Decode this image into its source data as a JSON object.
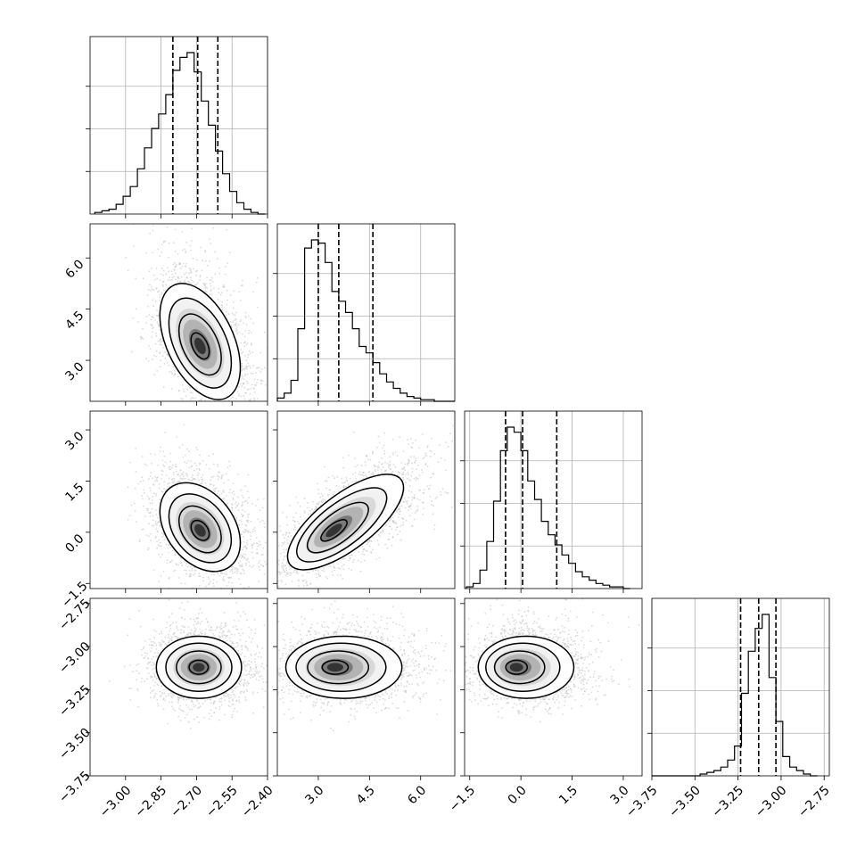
{
  "chart_data": {
    "type": "corner",
    "parameters": [
      {
        "range": [
          -3.15,
          -2.4
        ],
        "ticks": [
          -3.0,
          -2.85,
          -2.7,
          -2.55,
          -2.4
        ],
        "tick_labels": [
          "−3.00",
          "−2.85",
          "−2.70",
          "−2.55",
          "−2.40"
        ],
        "quantiles": [
          -2.8,
          -2.695,
          -2.61
        ],
        "hist_bin_edges": [
          -3.13,
          -3.1,
          -3.07,
          -3.04,
          -3.01,
          -2.98,
          -2.95,
          -2.92,
          -2.89,
          -2.86,
          -2.83,
          -2.8,
          -2.77,
          -2.74,
          -2.71,
          -2.68,
          -2.65,
          -2.62,
          -2.59,
          -2.56,
          -2.53,
          -2.5,
          -2.47,
          -2.44,
          -2.41
        ],
        "hist_counts": [
          0.01,
          0.02,
          0.03,
          0.06,
          0.11,
          0.17,
          0.28,
          0.41,
          0.53,
          0.62,
          0.74,
          0.89,
          0.97,
          1.0,
          0.88,
          0.7,
          0.55,
          0.39,
          0.25,
          0.14,
          0.07,
          0.03,
          0.01,
          0.0
        ]
      },
      {
        "range": [
          1.8,
          7.0
        ],
        "ticks": [
          3.0,
          4.5,
          6.0
        ],
        "tick_labels": [
          "3.0",
          "4.5",
          "6.0"
        ],
        "quantiles": [
          3.0,
          3.6,
          4.6
        ],
        "hist_bin_edges": [
          1.8,
          2.0,
          2.2,
          2.4,
          2.6,
          2.8,
          3.0,
          3.2,
          3.4,
          3.6,
          3.8,
          4.0,
          4.2,
          4.4,
          4.6,
          4.8,
          5.0,
          5.2,
          5.4,
          5.6,
          5.8,
          6.0,
          6.2,
          6.4,
          6.6,
          7.0
        ],
        "hist_counts": [
          0.02,
          0.05,
          0.13,
          0.45,
          0.95,
          1.0,
          0.98,
          0.86,
          0.68,
          0.62,
          0.55,
          0.45,
          0.34,
          0.3,
          0.24,
          0.17,
          0.12,
          0.08,
          0.05,
          0.03,
          0.02,
          0.01,
          0.01,
          0.0,
          0.0
        ]
      },
      {
        "range": [
          -1.65,
          3.55
        ],
        "ticks": [
          -1.5,
          0.0,
          1.5,
          3.0
        ],
        "tick_labels": [
          "−1.5",
          "0.0",
          "1.5",
          "3.0"
        ],
        "quantiles": [
          -0.45,
          0.05,
          1.05
        ],
        "hist_bin_edges": [
          -1.6,
          -1.4,
          -1.2,
          -1.0,
          -0.8,
          -0.6,
          -0.4,
          -0.2,
          0.0,
          0.2,
          0.4,
          0.6,
          0.8,
          1.0,
          1.2,
          1.4,
          1.6,
          1.8,
          2.0,
          2.2,
          2.4,
          2.6,
          2.8,
          3.0,
          3.2
        ],
        "hist_counts": [
          0.01,
          0.03,
          0.11,
          0.28,
          0.52,
          0.82,
          0.96,
          0.93,
          0.82,
          0.64,
          0.53,
          0.4,
          0.32,
          0.26,
          0.2,
          0.15,
          0.1,
          0.07,
          0.05,
          0.03,
          0.02,
          0.01,
          0.01,
          0.0
        ]
      },
      {
        "range": [
          -3.75,
          -2.72
        ],
        "ticks": [
          -3.75,
          -3.5,
          -3.25,
          -3.0,
          -2.75
        ],
        "tick_labels": [
          "−3.75",
          "−3.50",
          "−3.25",
          "−3.00",
          "−2.75"
        ],
        "quantiles": [
          -3.235,
          -3.13,
          -3.03
        ],
        "hist_bin_edges": [
          -3.75,
          -3.71,
          -3.67,
          -3.63,
          -3.59,
          -3.55,
          -3.51,
          -3.47,
          -3.43,
          -3.39,
          -3.35,
          -3.31,
          -3.27,
          -3.23,
          -3.19,
          -3.15,
          -3.11,
          -3.07,
          -3.03,
          -2.99,
          -2.95,
          -2.91,
          -2.87,
          -2.83,
          -2.79
        ],
        "hist_counts": [
          0.0,
          0.0,
          0.0,
          0.0,
          0.0,
          0.0,
          0.0,
          0.01,
          0.02,
          0.03,
          0.05,
          0.09,
          0.17,
          0.47,
          0.71,
          0.84,
          0.92,
          0.56,
          0.31,
          0.11,
          0.05,
          0.03,
          0.01,
          0.0
        ]
      }
    ],
    "pairs": [
      {
        "row": 1,
        "col": 0,
        "mean": [
          -2.685,
          3.55
        ],
        "sd": [
          0.085,
          0.85
        ],
        "rho": -0.45,
        "peak_offset": [
          0.0,
          -0.15
        ]
      },
      {
        "row": 2,
        "col": 0,
        "mean": [
          -2.685,
          0.15
        ],
        "sd": [
          0.085,
          0.65
        ],
        "rho": -0.35,
        "peak_offset": [
          0.0,
          -0.15
        ]
      },
      {
        "row": 2,
        "col": 1,
        "mean": [
          3.8,
          0.3
        ],
        "sd": [
          0.85,
          0.7
        ],
        "rho": 0.72,
        "peak_offset": [
          -0.4,
          -0.35
        ]
      },
      {
        "row": 3,
        "col": 0,
        "mean": [
          -2.69,
          -3.12
        ],
        "sd": [
          0.09,
          0.09
        ],
        "rho": 0.0,
        "peak_offset": [
          -0.01,
          0.0
        ]
      },
      {
        "row": 3,
        "col": 1,
        "mean": [
          3.75,
          -3.12
        ],
        "sd": [
          0.85,
          0.09
        ],
        "rho": 0.0,
        "peak_offset": [
          -0.3,
          0.0
        ]
      },
      {
        "row": 3,
        "col": 2,
        "mean": [
          0.15,
          -3.12
        ],
        "sd": [
          0.7,
          0.09
        ],
        "rho": 0.0,
        "peak_offset": [
          -0.4,
          0.0
        ]
      }
    ]
  }
}
